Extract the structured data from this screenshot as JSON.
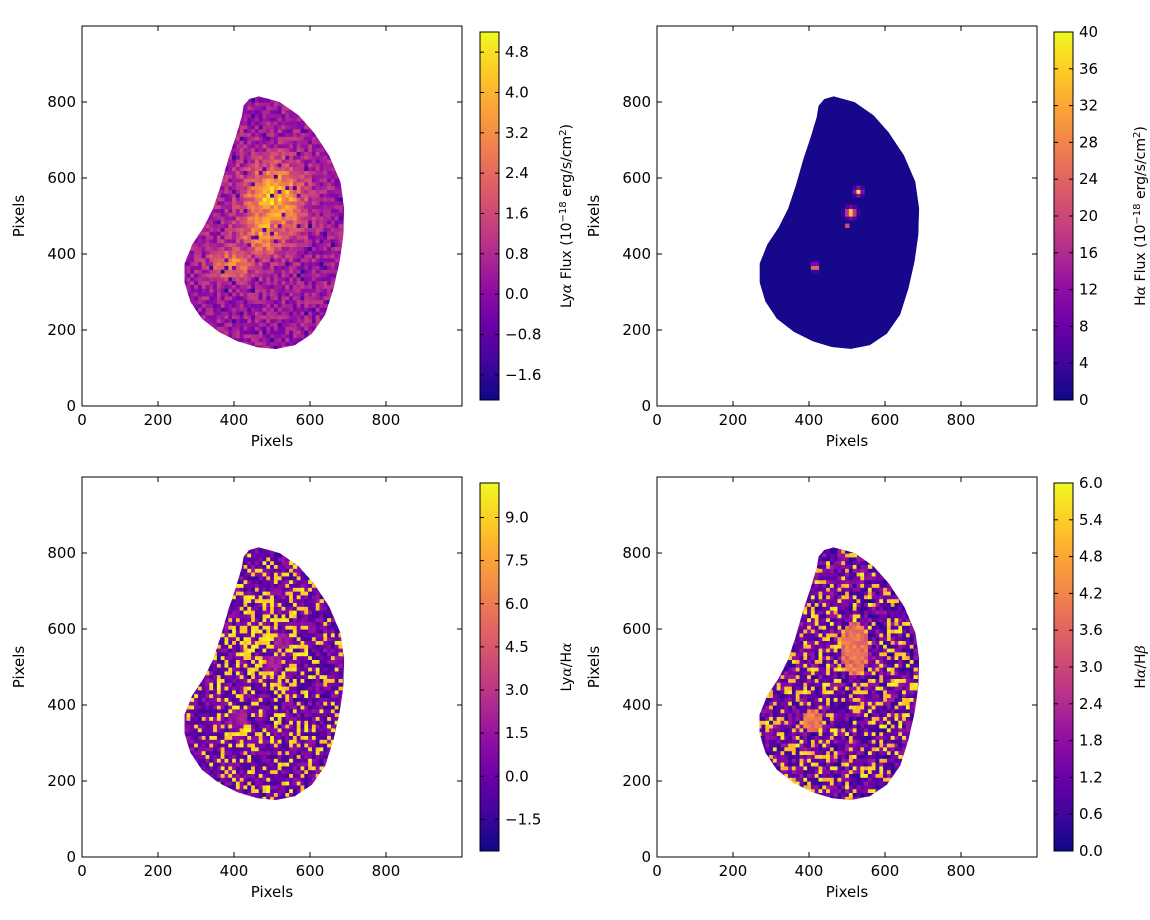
{
  "chart_data": [
    {
      "type": "heatmap",
      "panel": "top-left",
      "xlabel": "Pixels",
      "ylabel": "Pixels",
      "xlim": [
        0,
        1000
      ],
      "ylim": [
        0,
        1000
      ],
      "xticks": [
        "0",
        "200",
        "400",
        "600",
        "800"
      ],
      "yticks": [
        "0",
        "200",
        "400",
        "600",
        "800"
      ],
      "colormap": "plasma",
      "colorbar": {
        "label_parts": [
          "Ly",
          "α",
          " Flux (10",
          "−18",
          " erg/s/cm",
          "2",
          ")"
        ],
        "range": [
          -2.1,
          5.2
        ],
        "ticks": [
          "−1.6",
          "−0.8",
          "0.0",
          "0.8",
          "1.6",
          "2.4",
          "3.2",
          "4.0",
          "4.8"
        ],
        "tick_values": [
          -1.6,
          -0.8,
          0.0,
          0.8,
          1.6,
          2.4,
          3.2,
          4.0,
          4.8
        ]
      },
      "map_style": "noisy-bright",
      "features": [
        {
          "x": 500,
          "y": 540,
          "rx": 75,
          "ry": 95,
          "level": 0.95
        },
        {
          "x": 470,
          "y": 460,
          "rx": 60,
          "ry": 70,
          "level": 0.75
        },
        {
          "x": 390,
          "y": 370,
          "rx": 55,
          "ry": 45,
          "level": 0.65
        },
        {
          "x": 300,
          "y": 520,
          "rx": 40,
          "ry": 60,
          "level": 0.45
        }
      ]
    },
    {
      "type": "heatmap",
      "panel": "top-right",
      "xlabel": "Pixels",
      "ylabel": "Pixels",
      "xlim": [
        0,
        1000
      ],
      "ylim": [
        0,
        1000
      ],
      "xticks": [
        "0",
        "200",
        "400",
        "600",
        "800"
      ],
      "yticks": [
        "0",
        "200",
        "400",
        "600",
        "800"
      ],
      "colormap": "plasma",
      "colorbar": {
        "label_parts": [
          "H",
          "α",
          " Flux (10",
          "−18",
          " erg/s/cm",
          "2",
          ")"
        ],
        "range": [
          0,
          40
        ],
        "ticks": [
          "0",
          "4",
          "8",
          "12",
          "16",
          "20",
          "24",
          "28",
          "32",
          "36",
          "40"
        ],
        "tick_values": [
          0,
          4,
          8,
          12,
          16,
          20,
          24,
          28,
          32,
          36,
          40
        ]
      },
      "map_style": "dark-points",
      "features": [
        {
          "x": 525,
          "y": 560,
          "rx": 9,
          "ry": 9,
          "level": 0.95
        },
        {
          "x": 505,
          "y": 505,
          "rx": 12,
          "ry": 12,
          "level": 1.0
        },
        {
          "x": 410,
          "y": 362,
          "rx": 9,
          "ry": 8,
          "level": 0.85
        },
        {
          "x": 495,
          "y": 470,
          "rx": 6,
          "ry": 6,
          "level": 0.5
        }
      ]
    },
    {
      "type": "heatmap",
      "panel": "bottom-left",
      "xlabel": "Pixels",
      "ylabel": "Pixels",
      "xlim": [
        0,
        1000
      ],
      "ylim": [
        0,
        1000
      ],
      "xticks": [
        "0",
        "200",
        "400",
        "600",
        "800"
      ],
      "yticks": [
        "0",
        "200",
        "400",
        "600",
        "800"
      ],
      "colormap": "plasma",
      "colorbar": {
        "label_parts": [
          "Ly",
          "α",
          "/H",
          "α"
        ],
        "range": [
          -2.6,
          10.2
        ],
        "ticks": [
          "−1.5",
          "0.0",
          "1.5",
          "3.0",
          "4.5",
          "6.0",
          "7.5",
          "9.0"
        ],
        "tick_values": [
          -1.5,
          0.0,
          1.5,
          3.0,
          4.5,
          6.0,
          7.5,
          9.0
        ]
      },
      "map_style": "noisy-ratio",
      "features": [
        {
          "x": 525,
          "y": 565,
          "rx": 22,
          "ry": 22,
          "level": 0.3
        },
        {
          "x": 500,
          "y": 505,
          "rx": 25,
          "ry": 25,
          "level": 0.3
        },
        {
          "x": 405,
          "y": 360,
          "rx": 25,
          "ry": 25,
          "level": 0.3
        },
        {
          "x": 490,
          "y": 570,
          "rx": 90,
          "ry": 110,
          "level": 0.9
        }
      ]
    },
    {
      "type": "heatmap",
      "panel": "bottom-right",
      "xlabel": "Pixels",
      "ylabel": "Pixels",
      "xlim": [
        0,
        1000
      ],
      "ylim": [
        0,
        1000
      ],
      "xticks": [
        "0",
        "200",
        "400",
        "600",
        "800"
      ],
      "yticks": [
        "0",
        "200",
        "400",
        "600",
        "800"
      ],
      "colormap": "plasma",
      "colorbar": {
        "label_parts": [
          "H",
          "α",
          "/H",
          "β"
        ],
        "range": [
          0.0,
          6.0
        ],
        "ticks": [
          "0.0",
          "0.6",
          "1.2",
          "1.8",
          "2.4",
          "3.0",
          "3.6",
          "4.2",
          "4.8",
          "5.4",
          "6.0"
        ],
        "tick_values": [
          0.0,
          0.6,
          1.2,
          1.8,
          2.4,
          3.0,
          3.6,
          4.2,
          4.8,
          5.4,
          6.0
        ]
      },
      "map_style": "noisy-patches",
      "features": [
        {
          "x": 515,
          "y": 545,
          "rx": 40,
          "ry": 80,
          "level": 0.6
        },
        {
          "x": 405,
          "y": 355,
          "rx": 30,
          "ry": 30,
          "level": 0.6
        }
      ]
    }
  ],
  "galaxy_outline": [
    [
      465,
      815
    ],
    [
      520,
      800
    ],
    [
      570,
      765
    ],
    [
      610,
      720
    ],
    [
      650,
      660
    ],
    [
      680,
      590
    ],
    [
      690,
      520
    ],
    [
      688,
      450
    ],
    [
      678,
      380
    ],
    [
      662,
      310
    ],
    [
      640,
      240
    ],
    [
      605,
      190
    ],
    [
      560,
      160
    ],
    [
      510,
      150
    ],
    [
      460,
      155
    ],
    [
      410,
      170
    ],
    [
      360,
      195
    ],
    [
      315,
      230
    ],
    [
      285,
      275
    ],
    [
      270,
      325
    ],
    [
      270,
      375
    ],
    [
      290,
      425
    ],
    [
      320,
      470
    ],
    [
      345,
      520
    ],
    [
      365,
      580
    ],
    [
      385,
      650
    ],
    [
      405,
      710
    ],
    [
      420,
      760
    ],
    [
      425,
      790
    ],
    [
      440,
      808
    ]
  ]
}
